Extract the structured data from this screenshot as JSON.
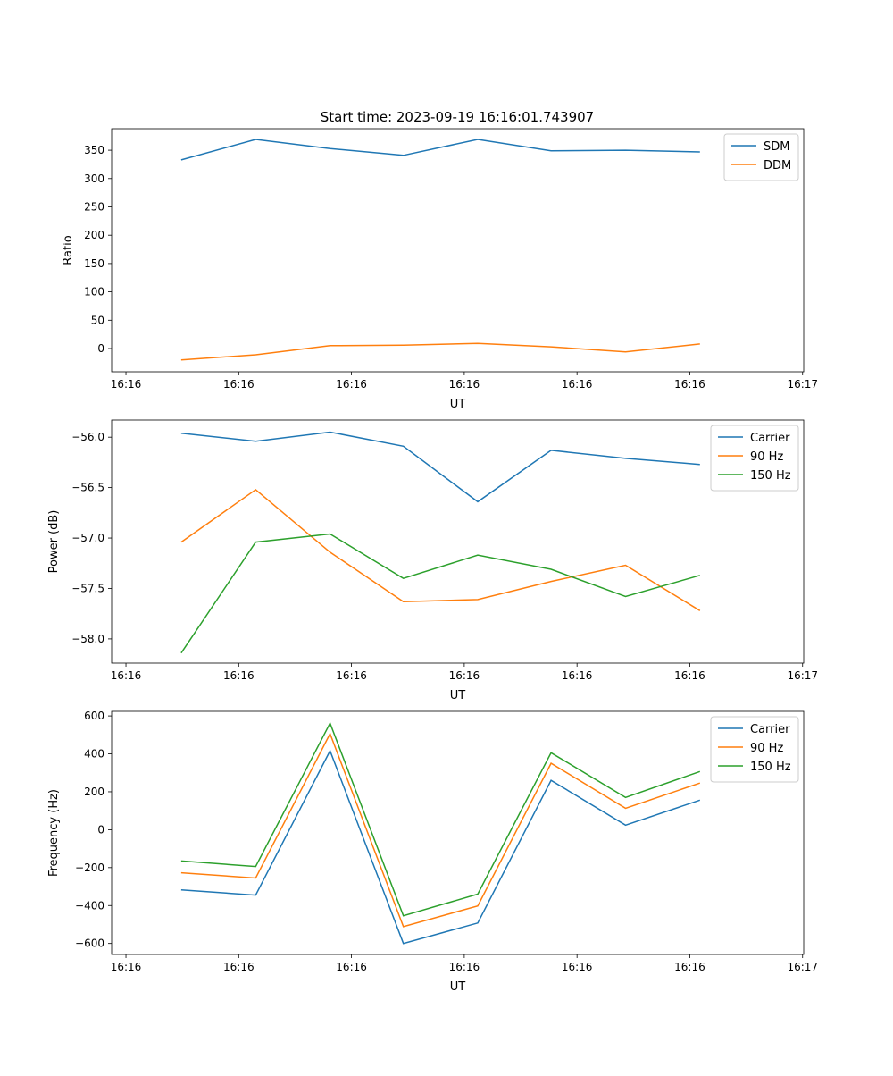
{
  "chart_data": {
    "title": "Start time: 2023-09-19 16:16:01.743907",
    "x_unit_note": "seconds after 16:16:00",
    "xlim": [
      -1.27,
      60.1
    ],
    "xticks": [
      0,
      10,
      20,
      30,
      40,
      50,
      60
    ],
    "xtick_labels": [
      "16:16",
      "16:16",
      "16:16",
      "16:16",
      "16:16",
      "16:16",
      "16:17"
    ],
    "x": [
      4.9,
      11.5,
      18.1,
      24.6,
      31.2,
      37.7,
      44.3,
      50.9
    ],
    "panels": [
      {
        "type": "line",
        "xlabel": "UT",
        "ylabel": "Ratio",
        "ylim": [
          -41,
          388
        ],
        "yticks": [
          0,
          50,
          100,
          150,
          200,
          250,
          300,
          350
        ],
        "ytick_labels": [
          "0",
          "50",
          "100",
          "150",
          "200",
          "250",
          "300",
          "350"
        ],
        "legend": "top-right",
        "series": [
          {
            "name": "SDM",
            "color": "#1f77b4",
            "values": [
              333,
              369,
              353,
              341,
              369,
              349,
              350,
              347
            ]
          },
          {
            "name": "DDM",
            "color": "#ff7f0e",
            "values": [
              -20,
              -11,
              5,
              6,
              9,
              3,
              -6,
              8
            ]
          }
        ]
      },
      {
        "type": "line",
        "xlabel": "UT",
        "ylabel": "Power (dB)",
        "ylim": [
          -58.24,
          -55.83
        ],
        "yticks": [
          -56.0,
          -56.5,
          -57.0,
          -57.5,
          -58.0
        ],
        "ytick_labels": [
          "−56.0",
          "−56.5",
          "−57.0",
          "−57.5",
          "−58.0"
        ],
        "legend": "top-right",
        "series": [
          {
            "name": "Carrier",
            "color": "#1f77b4",
            "values": [
              -55.96,
              -56.04,
              -55.95,
              -56.09,
              -56.64,
              -56.13,
              -56.21,
              -56.27
            ]
          },
          {
            "name": "90 Hz",
            "color": "#ff7f0e",
            "values": [
              -57.04,
              -56.52,
              -57.14,
              -57.63,
              -57.61,
              -57.43,
              -57.27,
              -57.72
            ]
          },
          {
            "name": "150 Hz",
            "color": "#2ca02c",
            "values": [
              -58.14,
              -57.04,
              -56.96,
              -57.4,
              -57.17,
              -57.31,
              -57.58,
              -57.37
            ]
          }
        ]
      },
      {
        "type": "line",
        "xlabel": "UT",
        "ylabel": "Frequency (Hz)",
        "ylim": [
          -658,
          624
        ],
        "yticks": [
          600,
          400,
          200,
          0,
          -200,
          -400,
          -600
        ],
        "ytick_labels": [
          "600",
          "400",
          "200",
          "0",
          "−200",
          "−400",
          "−600"
        ],
        "legend": "top-right",
        "series": [
          {
            "name": "Carrier",
            "color": "#1f77b4",
            "values": [
              -317,
              -345,
              416,
              -600,
              -492,
              260,
              24,
              156
            ]
          },
          {
            "name": "90 Hz",
            "color": "#ff7f0e",
            "values": [
              -227,
              -255,
              506,
              -511,
              -402,
              350,
              113,
              246
            ]
          },
          {
            "name": "150 Hz",
            "color": "#2ca02c",
            "values": [
              -165,
              -194,
              562,
              -454,
              -340,
              406,
              170,
              307
            ]
          }
        ]
      }
    ]
  }
}
